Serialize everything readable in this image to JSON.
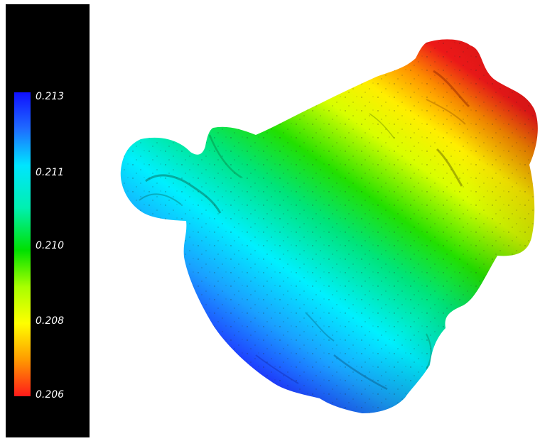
{
  "legend": {
    "ticks": [
      "0.213",
      "0.211",
      "0.210",
      "0.208",
      "0.206"
    ],
    "colors": {
      "max": "#1010ff",
      "upper": "#00e5ff",
      "middle": "#00e000",
      "lower": "#ffff00",
      "min": "#ff1a1a"
    }
  },
  "surface": {
    "gradient_direction": "blue lower-left to red upper-right",
    "speckled": true
  }
}
